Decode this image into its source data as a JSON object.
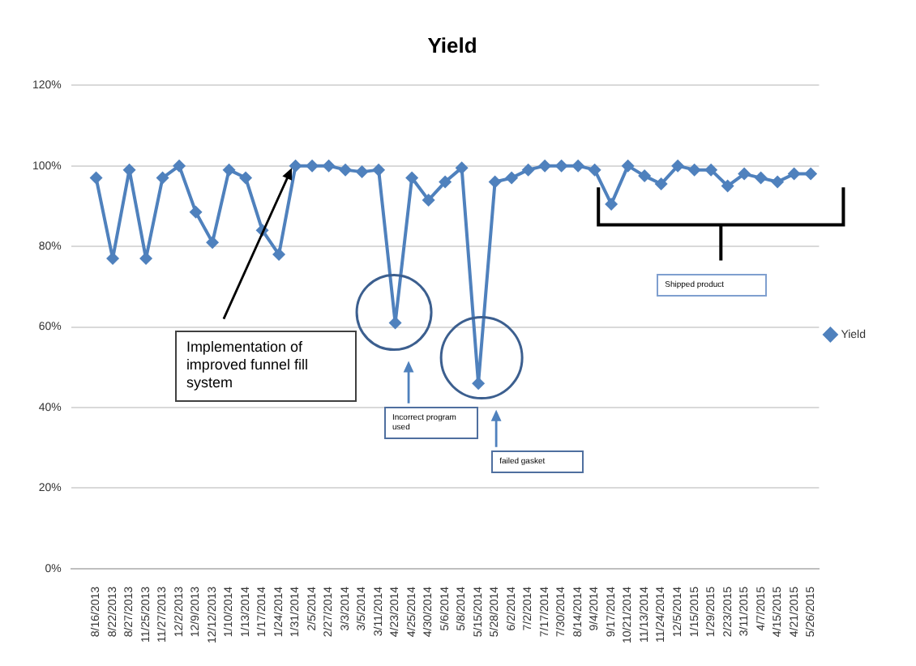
{
  "chart_data": {
    "type": "line",
    "title": "Yield",
    "categories": [
      null,
      "8/16/2013",
      "8/22/2013",
      "8/27/2013",
      "11/25/2013",
      "11/27/2013",
      "12/2/2013",
      "12/9/2013",
      "12/12/2013",
      "1/10/2014",
      "1/13/2014",
      "1/17/2014",
      "1/24/2014",
      "1/31/2014",
      "2/5/2014",
      "2/27/2014",
      "3/3/2014",
      "3/5/2014",
      "3/11/2014",
      "4/23/2014",
      "4/25/2014",
      "4/30/2014",
      "5/6/2014",
      "5/8/2014",
      "5/15/2014",
      "5/28/2014",
      "6/2/2014",
      "7/2/2014",
      "7/17/2014",
      "7/30/2014",
      "8/14/2014",
      "9/4/2014",
      "9/17/2014",
      "10/21/2014",
      "11/13/2014",
      "11/24/2014",
      "12/5/2014",
      "1/15/2015",
      "1/29/2015",
      "2/23/2015",
      "3/11/2015",
      "4/7/2015",
      "4/15/2015",
      "4/21/2015",
      "5/26/2015"
    ],
    "series": [
      {
        "name": "Yield",
        "color": "#4f81bd",
        "values": [
          null,
          97,
          77,
          99,
          77,
          97,
          100,
          88.5,
          81,
          99,
          97,
          84,
          78,
          100,
          100,
          100,
          99,
          98.5,
          99,
          61,
          97,
          91.5,
          96,
          99.5,
          46,
          96,
          97,
          99,
          100,
          100,
          100,
          99,
          90.5,
          100,
          97.5,
          95.5,
          100,
          99,
          99,
          95,
          98,
          97,
          96,
          98,
          98
        ]
      }
    ],
    "ylim": [
      0,
      120
    ],
    "yticks": [
      {
        "value": 0,
        "label": "0%"
      },
      {
        "value": 20,
        "label": "20%"
      },
      {
        "value": 40,
        "label": "40%"
      },
      {
        "value": 60,
        "label": "60%"
      },
      {
        "value": 80,
        "label": "80%"
      },
      {
        "value": 100,
        "label": "100%"
      },
      {
        "value": 120,
        "label": "120%"
      }
    ],
    "grid": "y",
    "legend": "right",
    "marker": "diamond",
    "line_style": "solid",
    "annotations": [
      "Implementation of improved funnel fill system",
      "Incorrect program used",
      "failed gasket",
      "Shipped product"
    ]
  }
}
